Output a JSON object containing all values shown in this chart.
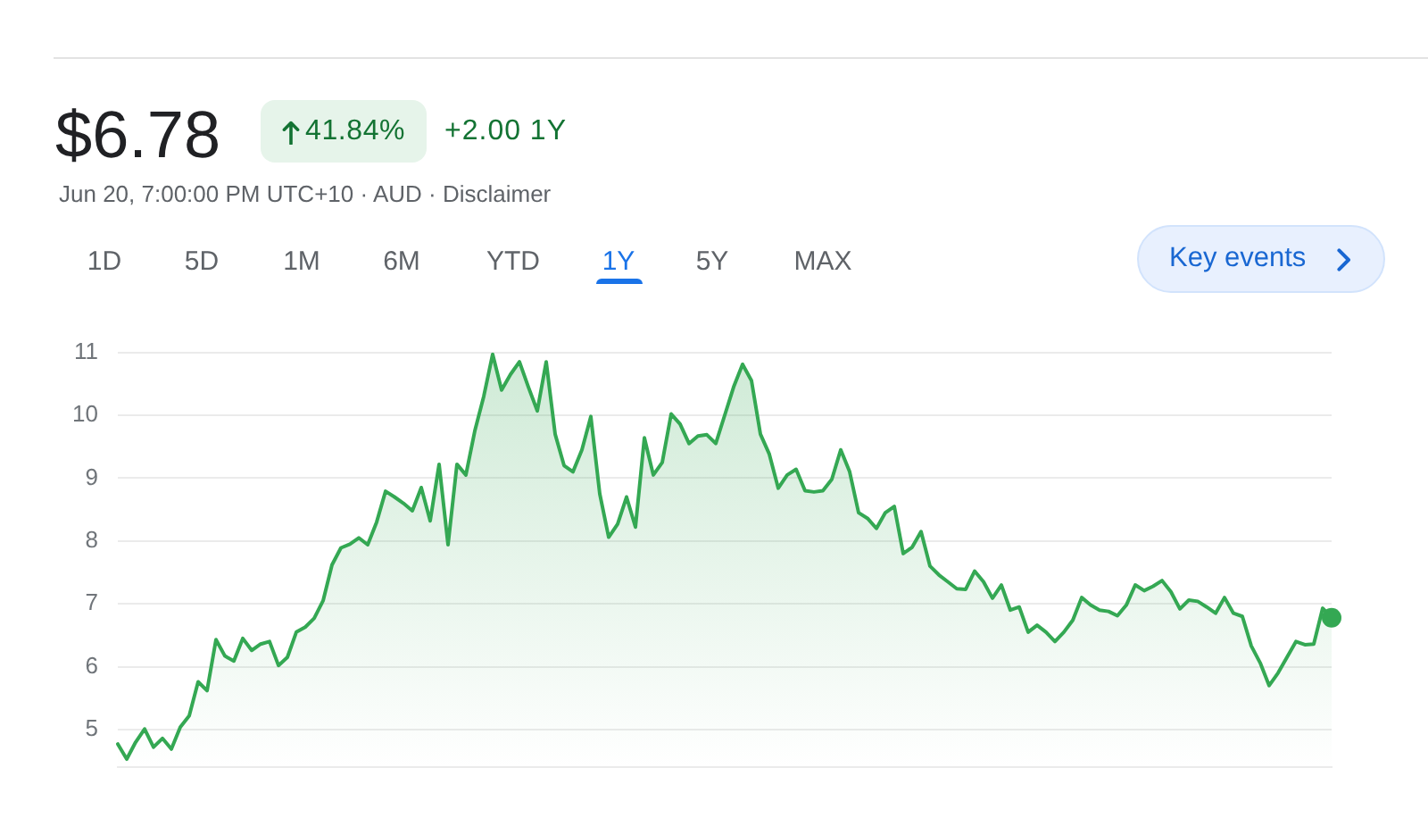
{
  "chart_data": {
    "type": "area",
    "title": "$6.78",
    "subtitle": "Jun 20, 7:00:00 PM UTC+10 · AUD · Disclaimer",
    "annotations": [
      "41.84%",
      "+2.00 1Y",
      "1D",
      "5D",
      "1M",
      "6M",
      "YTD",
      "1Y",
      "5Y",
      "MAX",
      "Key events"
    ],
    "categories": [
      null,
      null,
      null,
      null,
      null,
      null,
      null,
      null,
      null,
      null,
      null,
      null,
      null,
      null,
      null,
      null,
      null,
      null,
      null,
      null,
      null,
      null,
      null,
      null,
      null,
      null,
      null,
      null,
      null,
      null,
      null,
      null,
      null,
      null,
      null,
      null,
      null,
      null,
      null,
      null,
      null,
      null,
      null,
      null,
      null,
      null,
      null,
      null,
      null,
      null,
      null,
      null,
      null,
      null,
      null,
      null,
      null,
      null,
      null,
      null,
      null,
      null,
      null,
      null,
      null,
      null,
      null,
      null,
      null,
      null,
      null,
      null,
      null,
      null,
      null,
      null,
      null,
      null,
      null,
      null,
      null,
      null,
      null,
      null,
      null,
      null,
      null,
      null,
      null,
      null,
      null,
      null,
      null,
      null,
      null,
      null,
      null,
      null,
      null,
      null,
      null,
      null,
      null,
      null,
      null,
      null,
      null,
      null,
      null,
      null,
      null,
      null,
      null,
      null,
      null,
      null,
      null,
      null,
      null,
      null,
      null,
      null,
      null,
      null,
      null,
      null,
      null,
      null,
      null,
      null,
      null,
      null,
      null,
      null,
      null,
      null,
      null
    ],
    "ylim": [
      4.4,
      11
    ],
    "yticks": [
      5,
      6,
      7,
      8,
      9,
      10,
      11
    ],
    "grid": "y",
    "tick_labels": "y",
    "series": [
      {
        "color": "#34a853",
        "values": [
          4.77,
          4.53,
          4.8,
          5.01,
          4.72,
          4.86,
          4.69,
          5.04,
          5.22,
          5.76,
          5.62,
          6.43,
          6.17,
          6.09,
          6.45,
          6.26,
          6.36,
          6.4,
          6.02,
          6.15,
          6.55,
          6.63,
          6.77,
          7.05,
          7.62,
          7.89,
          7.95,
          8.05,
          7.94,
          8.3,
          8.79,
          8.7,
          8.6,
          8.48,
          8.85,
          8.32,
          9.22,
          7.94,
          9.22,
          9.05,
          9.75,
          10.3,
          10.97,
          10.4,
          10.65,
          10.85,
          10.45,
          10.07,
          10.85,
          9.7,
          9.2,
          9.1,
          9.45,
          9.98,
          8.75,
          8.06,
          8.27,
          8.7,
          8.22,
          9.64,
          9.05,
          9.25,
          10.02,
          9.86,
          9.55,
          9.67,
          9.69,
          9.55,
          10.0,
          10.45,
          10.81,
          10.55,
          9.7,
          9.38,
          8.84,
          9.05,
          9.14,
          8.8,
          8.78,
          8.8,
          8.98,
          9.45,
          9.1,
          8.45,
          8.36,
          8.2,
          8.45,
          8.55,
          7.8,
          7.9,
          8.15,
          7.6,
          7.46,
          7.35,
          7.24,
          7.23,
          7.52,
          7.35,
          7.09,
          7.3,
          6.9,
          6.95,
          6.55,
          6.66,
          6.55,
          6.4,
          6.55,
          6.74,
          7.1,
          6.98,
          6.9,
          6.88,
          6.81,
          6.98,
          7.3,
          7.21,
          7.28,
          7.37,
          7.19,
          6.92,
          7.06,
          7.04,
          6.95,
          6.85,
          7.1,
          6.85,
          6.8,
          6.33,
          6.06,
          5.7,
          5.9,
          6.15,
          6.4,
          6.35,
          6.36,
          6.93,
          6.78
        ]
      },
      {
        "type": "scatter",
        "marker": "circle",
        "color": "#34a853",
        "values": [
          null,
          null,
          null,
          null,
          null,
          null,
          null,
          null,
          null,
          null,
          null,
          null,
          null,
          null,
          null,
          null,
          null,
          null,
          null,
          null,
          null,
          null,
          null,
          null,
          null,
          null,
          null,
          null,
          null,
          null,
          null,
          null,
          null,
          null,
          null,
          null,
          null,
          null,
          null,
          null,
          null,
          null,
          null,
          null,
          null,
          null,
          null,
          null,
          null,
          null,
          null,
          null,
          null,
          null,
          null,
          null,
          null,
          null,
          null,
          null,
          null,
          null,
          null,
          null,
          null,
          null,
          null,
          null,
          null,
          null,
          null,
          null,
          null,
          null,
          null,
          null,
          null,
          null,
          null,
          null,
          null,
          null,
          null,
          null,
          null,
          null,
          null,
          null,
          null,
          null,
          null,
          null,
          null,
          null,
          null,
          null,
          null,
          null,
          null,
          null,
          null,
          null,
          null,
          null,
          null,
          null,
          null,
          null,
          null,
          null,
          null,
          null,
          null,
          null,
          null,
          null,
          null,
          null,
          null,
          null,
          null,
          null,
          null,
          null,
          null,
          null,
          null,
          null,
          null,
          null,
          null,
          null,
          null,
          null,
          null,
          null,
          6.78
        ]
      }
    ]
  }
}
